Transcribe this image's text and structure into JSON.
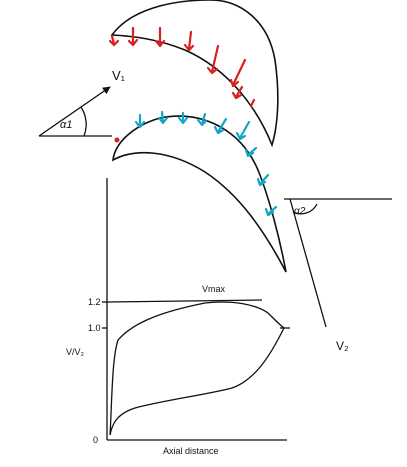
{
  "labels": {
    "v1": "V₁",
    "alpha1": "α1",
    "alpha2": "α2",
    "v2": "V₂",
    "vmax": "Vmax",
    "tick_12": "1.2",
    "tick_10": "1.0",
    "tick_0": "0",
    "yaxis": "V/V₂",
    "xaxis": "Axial distance"
  },
  "colors": {
    "ink": "#111111",
    "pressure_arrows": "#d9201f",
    "suction_arrows": "#12a7c8",
    "background": "#ffffff"
  },
  "arrow_sets": {
    "pressure_side": "red arrows pointing down onto upper blade",
    "suction_side": "cyan arrows pointing down onto lower blade"
  }
}
